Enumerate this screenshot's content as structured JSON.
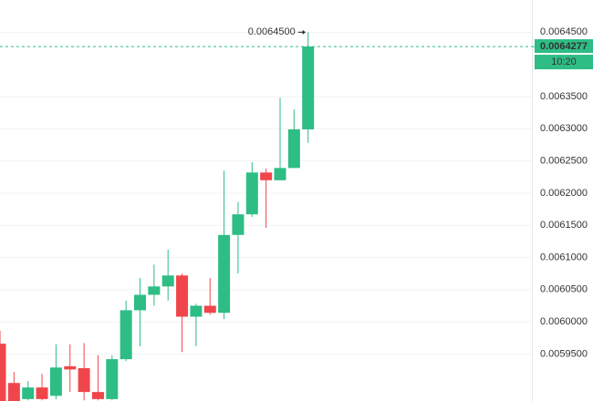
{
  "chart_data": {
    "type": "candlestick",
    "open": [
      0.005966,
      0.005905,
      0.00588,
      0.005898,
      0.005885,
      0.005931,
      0.005928,
      0.005891,
      0.00588,
      0.005942,
      0.006018,
      0.006042,
      0.006055,
      0.006072,
      0.006008,
      0.006025,
      0.006014,
      0.006135,
      0.006167,
      0.006232,
      0.00622,
      0.006239,
      0.006299
    ],
    "high": [
      0.005986,
      0.005922,
      0.005908,
      0.005919,
      0.005965,
      0.005965,
      0.005967,
      0.005948,
      0.005948,
      0.006033,
      0.006068,
      0.006089,
      0.006112,
      0.006075,
      0.006028,
      0.006068,
      0.006235,
      0.006186,
      0.006248,
      0.006238,
      0.006348,
      0.00633,
      0.00645
    ],
    "low": [
      0.005877,
      0.005877,
      0.005878,
      0.005878,
      0.00588,
      0.005891,
      0.005878,
      0.005878,
      0.005878,
      0.005939,
      0.005962,
      0.006025,
      0.006033,
      0.005953,
      0.005962,
      0.006011,
      0.006004,
      0.006075,
      0.006163,
      0.006146,
      0.00622,
      0.006239,
      0.006278
    ],
    "close": [
      0.005877,
      0.005877,
      0.005898,
      0.00588,
      0.005929,
      0.005926,
      0.005891,
      0.00588,
      0.005942,
      0.006018,
      0.006042,
      0.006055,
      0.006072,
      0.006008,
      0.006025,
      0.006014,
      0.006135,
      0.006167,
      0.006232,
      0.00622,
      0.006239,
      0.006299,
      0.0064277
    ],
    "up_color": "#2ebd85",
    "down_color": "#f0464b",
    "ylim": [
      0.005877,
      0.0065
    ],
    "yticks": [
      {
        "value": 0.00645,
        "label": "0.0064500"
      },
      {
        "value": 0.00635,
        "label": "0.0063500"
      },
      {
        "value": 0.0063,
        "label": "0.0063000"
      },
      {
        "value": 0.00625,
        "label": "0.0062500"
      },
      {
        "value": 0.0062,
        "label": "0.0062000"
      },
      {
        "value": 0.00615,
        "label": "0.0061500"
      },
      {
        "value": 0.0061,
        "label": "0.0061000"
      },
      {
        "value": 0.00605,
        "label": "0.0060500"
      },
      {
        "value": 0.006,
        "label": "0.0060000"
      },
      {
        "value": 0.00595,
        "label": "0.0059500"
      }
    ],
    "grid": true,
    "last_price": 0.0064277,
    "last_time": "10:20",
    "high_marker": {
      "value": 0.00645,
      "label": "0.0064500"
    }
  }
}
